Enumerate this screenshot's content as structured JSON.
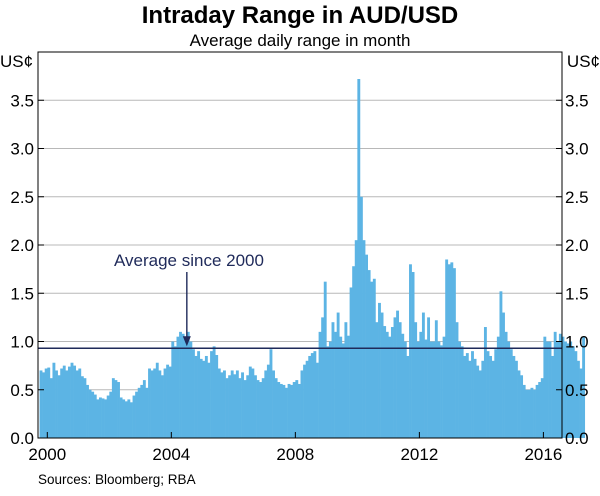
{
  "chart_data": {
    "type": "bar",
    "title": "Intraday Range in AUD/USD",
    "subtitle": "Average daily range in month",
    "ylabel_left": "US¢",
    "ylabel_right": "US¢",
    "ylim": [
      0,
      4.0
    ],
    "y_ticks": [
      0.0,
      0.5,
      1.0,
      1.5,
      2.0,
      2.5,
      3.0,
      3.5
    ],
    "y_tick_labels": [
      "0.0",
      "0.5",
      "1.0",
      "1.5",
      "2.0",
      "2.5",
      "3.0",
      "3.5"
    ],
    "xlim": [
      1999.7,
      2016.6
    ],
    "x_ticks": [
      2000,
      2004,
      2008,
      2012,
      2016
    ],
    "x_tick_labels": [
      "2000",
      "2004",
      "2008",
      "2012",
      "2016"
    ],
    "grid": "horizontal",
    "bar_color": "#5cb4e4",
    "line_color": "#1f2a5a",
    "start_month": "1999-10",
    "monthly_values": [
      0.7,
      0.68,
      0.72,
      0.73,
      0.62,
      0.78,
      0.7,
      0.65,
      0.72,
      0.75,
      0.7,
      0.74,
      0.78,
      0.75,
      0.7,
      0.72,
      0.64,
      0.62,
      0.55,
      0.5,
      0.48,
      0.45,
      0.4,
      0.42,
      0.41,
      0.4,
      0.44,
      0.48,
      0.62,
      0.6,
      0.58,
      0.42,
      0.4,
      0.38,
      0.4,
      0.37,
      0.44,
      0.48,
      0.52,
      0.55,
      0.6,
      0.52,
      0.72,
      0.7,
      0.72,
      0.78,
      0.7,
      0.65,
      0.72,
      0.76,
      0.74,
      1.0,
      0.95,
      1.05,
      1.1,
      1.08,
      1.05,
      1.1,
      1.0,
      0.92,
      0.85,
      0.9,
      0.82,
      0.8,
      0.85,
      0.78,
      0.9,
      0.95,
      0.86,
      0.72,
      0.68,
      0.7,
      0.62,
      0.65,
      0.7,
      0.66,
      0.7,
      0.62,
      0.68,
      0.6,
      0.65,
      0.74,
      0.72,
      0.65,
      0.6,
      0.58,
      0.62,
      0.7,
      0.76,
      0.92,
      0.7,
      0.62,
      0.58,
      0.56,
      0.55,
      0.52,
      0.56,
      0.55,
      0.58,
      0.6,
      0.56,
      0.7,
      0.76,
      0.8,
      0.85,
      0.88,
      0.9,
      0.78,
      1.1,
      1.25,
      1.62,
      0.95,
      1.0,
      1.2,
      1.1,
      1.3,
      1.05,
      0.98,
      1.2,
      1.06,
      1.56,
      1.78,
      2.05,
      3.72,
      2.5,
      2.05,
      1.9,
      1.74,
      1.62,
      1.65,
      1.2,
      1.4,
      1.3,
      1.16,
      1.1,
      1.05,
      1.15,
      1.25,
      1.32,
      1.2,
      1.08,
      1.0,
      0.85,
      1.8,
      1.72,
      1.2,
      1.0,
      1.1,
      1.3,
      1.02,
      1.25,
      1.0,
      1.0,
      1.22,
      1.0,
      0.96,
      1.05,
      1.85,
      1.8,
      1.82,
      1.76,
      1.2,
      1.0,
      0.95,
      0.85,
      0.88,
      0.8,
      0.9,
      0.82,
      0.75,
      0.7,
      0.8,
      1.15,
      0.9,
      0.85,
      0.8,
      0.92,
      1.05,
      1.52,
      1.3,
      1.1,
      1.0,
      0.92,
      0.85,
      0.8,
      0.7,
      0.65,
      0.55,
      0.5,
      0.5,
      0.52,
      0.5,
      0.55,
      0.58,
      0.62,
      1.05,
      1.0,
      1.0,
      0.85,
      1.1,
      1.0,
      1.08,
      1.05,
      1.0,
      0.98,
      1.0,
      0.95,
      0.9,
      0.8,
      0.72,
      1.05
    ],
    "average_since_2000": 0.93,
    "annotation": {
      "text": "Average since 2000",
      "x": 2004.5
    }
  },
  "source_text": "Sources:  Bloomberg; RBA"
}
